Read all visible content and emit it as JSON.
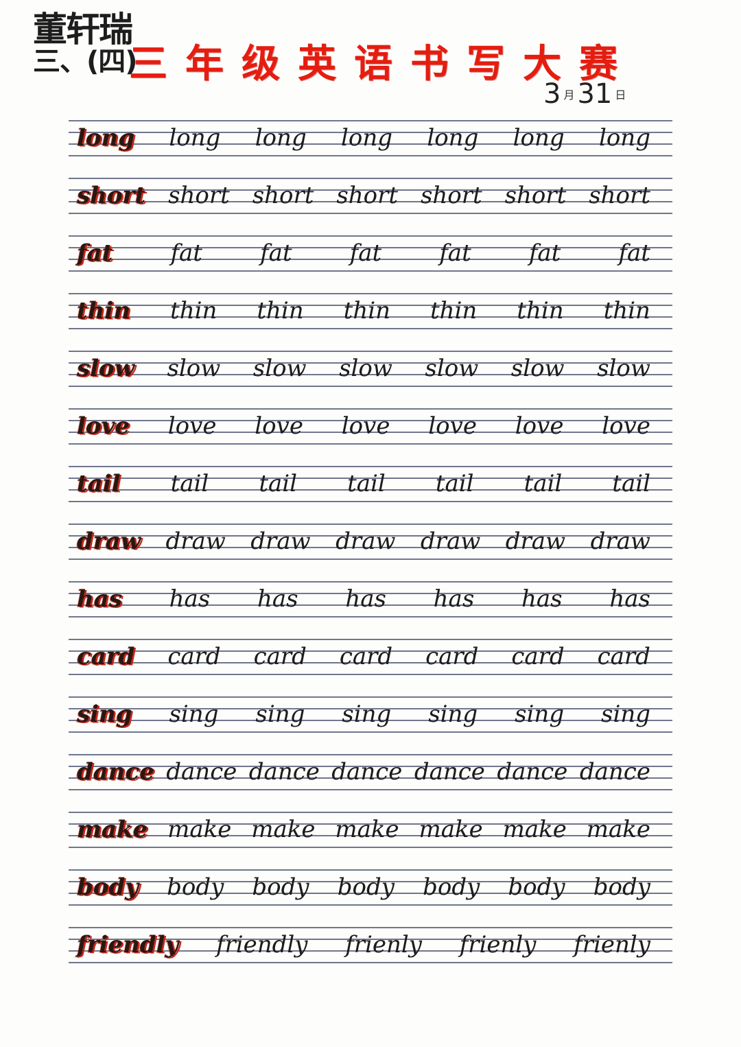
{
  "header": {
    "student_name": "董轩瑞",
    "class_label": "三、(四)",
    "title": "三年级英语书写大赛",
    "date": {
      "month": "3",
      "month_unit": "月",
      "day": "31",
      "day_unit": "日"
    }
  },
  "colors": {
    "title_red": "#e51d0f",
    "template_red": "#c6281a",
    "ink_black": "#1c1c1c",
    "line_blue": "#70768c"
  },
  "rows": [
    {
      "word": "long",
      "copies": [
        "long",
        "long",
        "long",
        "long",
        "long",
        "long"
      ]
    },
    {
      "word": "short",
      "copies": [
        "short",
        "short",
        "short",
        "short",
        "short",
        "short"
      ]
    },
    {
      "word": "fat",
      "copies": [
        "fat",
        "fat",
        "fat",
        "fat",
        "fat",
        "fat"
      ]
    },
    {
      "word": "thin",
      "copies": [
        "thin",
        "thin",
        "thin",
        "thin",
        "thin",
        "thin"
      ]
    },
    {
      "word": "slow",
      "copies": [
        "slow",
        "slow",
        "slow",
        "slow",
        "slow",
        "slow"
      ]
    },
    {
      "word": "love",
      "copies": [
        "love",
        "love",
        "love",
        "love",
        "love",
        "love"
      ]
    },
    {
      "word": "tail",
      "copies": [
        "tail",
        "tail",
        "tail",
        "tail",
        "tail",
        "tail"
      ]
    },
    {
      "word": "draw",
      "copies": [
        "draw",
        "draw",
        "draw",
        "draw",
        "draw",
        "draw"
      ]
    },
    {
      "word": "has",
      "copies": [
        "has",
        "has",
        "has",
        "has",
        "has",
        "has"
      ]
    },
    {
      "word": "card",
      "copies": [
        "card",
        "card",
        "card",
        "card",
        "card",
        "card"
      ]
    },
    {
      "word": "sing",
      "copies": [
        "sing",
        "sing",
        "sing",
        "sing",
        "sing",
        "sing"
      ]
    },
    {
      "word": "dance",
      "copies": [
        "dance",
        "dance",
        "dance",
        "dance",
        "dance",
        "dance"
      ]
    },
    {
      "word": "make",
      "copies": [
        "make",
        "make",
        "make",
        "make",
        "make",
        "make"
      ]
    },
    {
      "word": "body",
      "copies": [
        "body",
        "body",
        "body",
        "body",
        "body",
        "body"
      ]
    },
    {
      "word": "friendly",
      "copies": [
        "friendly",
        "frienly",
        "frienly",
        "frienly"
      ]
    }
  ]
}
